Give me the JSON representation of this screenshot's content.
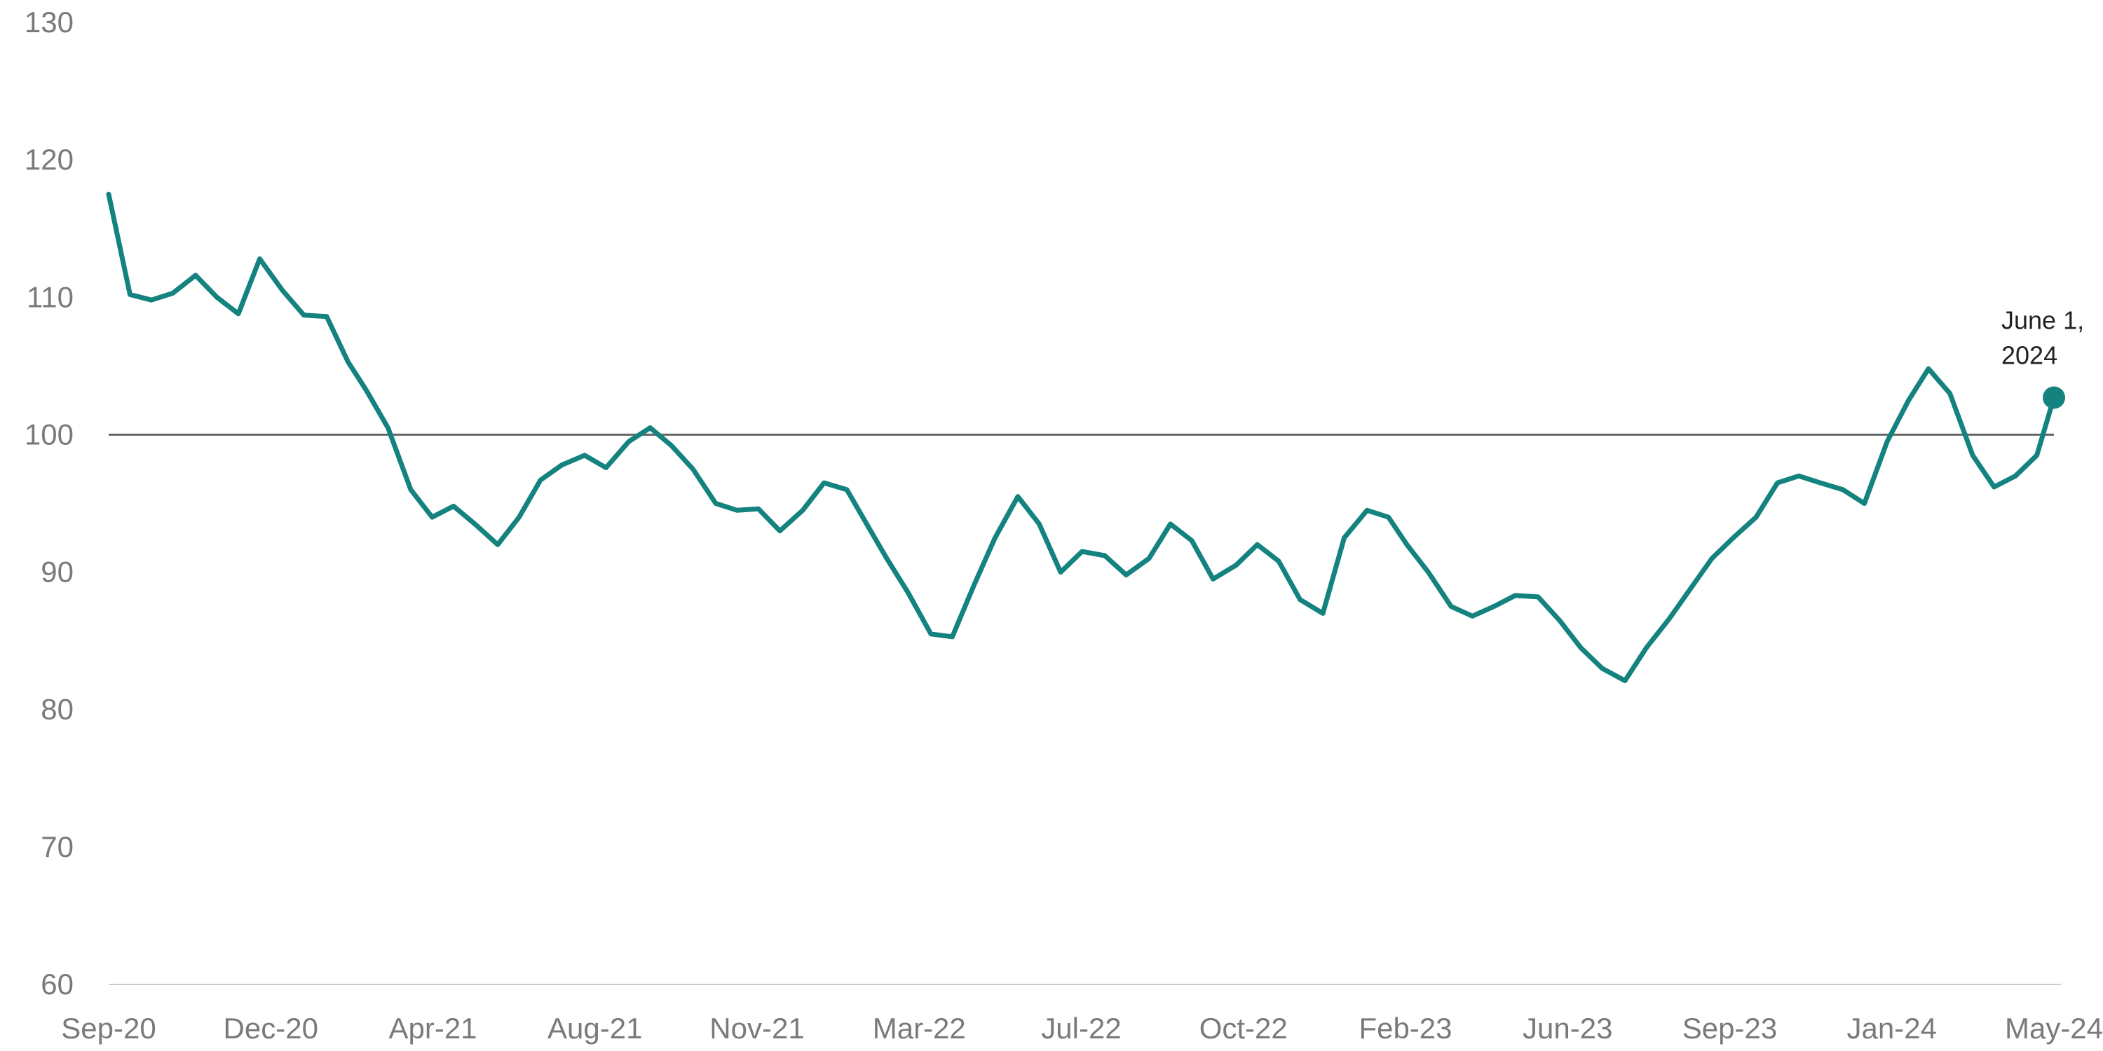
{
  "chart_data": {
    "type": "line",
    "title": "",
    "xlabel": "",
    "ylabel": "",
    "x_range": [
      "2020-09-05",
      "2024-06-01"
    ],
    "ylim": [
      60,
      130
    ],
    "yticks": [
      60,
      70,
      80,
      90,
      100,
      110,
      120,
      130
    ],
    "xtick_labels": [
      "Sep-20",
      "Dec-20",
      "Apr-21",
      "Aug-21",
      "Nov-21",
      "Mar-22",
      "Jul-22",
      "Oct-22",
      "Feb-23",
      "Jun-23",
      "Sep-23",
      "Jan-24",
      "May-24"
    ],
    "reference_line": 100,
    "grid": false,
    "colors": {
      "line": "#14827f",
      "reference": "#666666",
      "axis": "#cccccc"
    },
    "series": [
      {
        "name": "",
        "x": [
          "2020-09-05",
          "2020-09-20",
          "2020-10-05",
          "2020-10-20",
          "2020-11-05",
          "2020-11-20",
          "2020-12-05",
          "2020-12-20",
          "2021-01-05",
          "2021-01-20",
          "2021-02-05",
          "2021-02-20",
          "2021-03-05",
          "2021-03-20",
          "2021-04-05",
          "2021-04-20",
          "2021-05-05",
          "2021-05-20",
          "2021-06-05",
          "2021-06-20",
          "2021-07-05",
          "2021-07-20",
          "2021-08-05",
          "2021-08-20",
          "2021-09-05",
          "2021-09-20",
          "2021-10-05",
          "2021-10-20",
          "2021-11-05",
          "2021-11-20",
          "2021-12-05",
          "2021-12-20",
          "2022-01-05",
          "2022-01-20",
          "2022-02-05",
          "2022-02-20",
          "2022-03-05",
          "2022-03-20",
          "2022-04-05",
          "2022-04-20",
          "2022-05-05",
          "2022-05-20",
          "2022-06-05",
          "2022-06-20",
          "2022-07-05",
          "2022-07-20",
          "2022-08-05",
          "2022-08-20",
          "2022-09-05",
          "2022-09-20",
          "2022-10-05",
          "2022-10-20",
          "2022-11-05",
          "2022-11-20",
          "2022-12-05",
          "2022-12-20",
          "2023-01-05",
          "2023-01-20",
          "2023-02-05",
          "2023-02-20",
          "2023-03-05",
          "2023-03-20",
          "2023-04-05",
          "2023-04-20",
          "2023-05-05",
          "2023-05-20",
          "2023-06-05",
          "2023-06-20",
          "2023-07-05",
          "2023-07-20",
          "2023-08-05",
          "2023-08-20",
          "2023-09-05",
          "2023-09-20",
          "2023-10-05",
          "2023-10-20",
          "2023-11-05",
          "2023-11-20",
          "2023-12-05",
          "2023-12-20",
          "2024-01-05",
          "2024-01-20",
          "2024-02-05",
          "2024-02-20",
          "2024-03-05",
          "2024-03-20",
          "2024-04-05",
          "2024-04-20",
          "2024-05-05",
          "2024-05-20",
          "2024-06-01"
        ],
        "values": [
          117.5,
          110.2,
          109.8,
          110.3,
          111.6,
          110.0,
          108.8,
          112.8,
          110.5,
          108.7,
          108.6,
          105.3,
          103.2,
          100.5,
          96.0,
          94.0,
          94.8,
          93.5,
          92.0,
          94.0,
          96.7,
          97.8,
          98.5,
          97.6,
          99.5,
          100.5,
          99.2,
          97.5,
          95.0,
          94.5,
          94.6,
          93.0,
          94.5,
          96.5,
          96.0,
          93.3,
          91.0,
          88.5,
          85.5,
          85.3,
          89.0,
          92.5,
          95.5,
          93.5,
          90.0,
          91.5,
          91.2,
          89.8,
          91.0,
          93.5,
          92.3,
          89.5,
          90.5,
          92.0,
          90.8,
          88.0,
          87.0,
          92.5,
          94.5,
          94.0,
          92.0,
          90.0,
          87.5,
          86.8,
          87.5,
          88.3,
          88.2,
          86.5,
          84.5,
          83.0,
          82.1,
          84.5,
          86.6,
          88.8,
          91.0,
          92.5,
          94.0,
          96.5,
          97.0,
          96.5,
          96.0,
          95.0,
          99.5,
          102.5,
          104.8,
          103.0,
          98.5,
          96.2,
          97.0,
          98.5,
          102.7
        ]
      }
    ],
    "annotations": [
      {
        "x": "2024-06-01",
        "y": 102.7,
        "lines": [
          "June 1,",
          "2024"
        ]
      }
    ]
  }
}
